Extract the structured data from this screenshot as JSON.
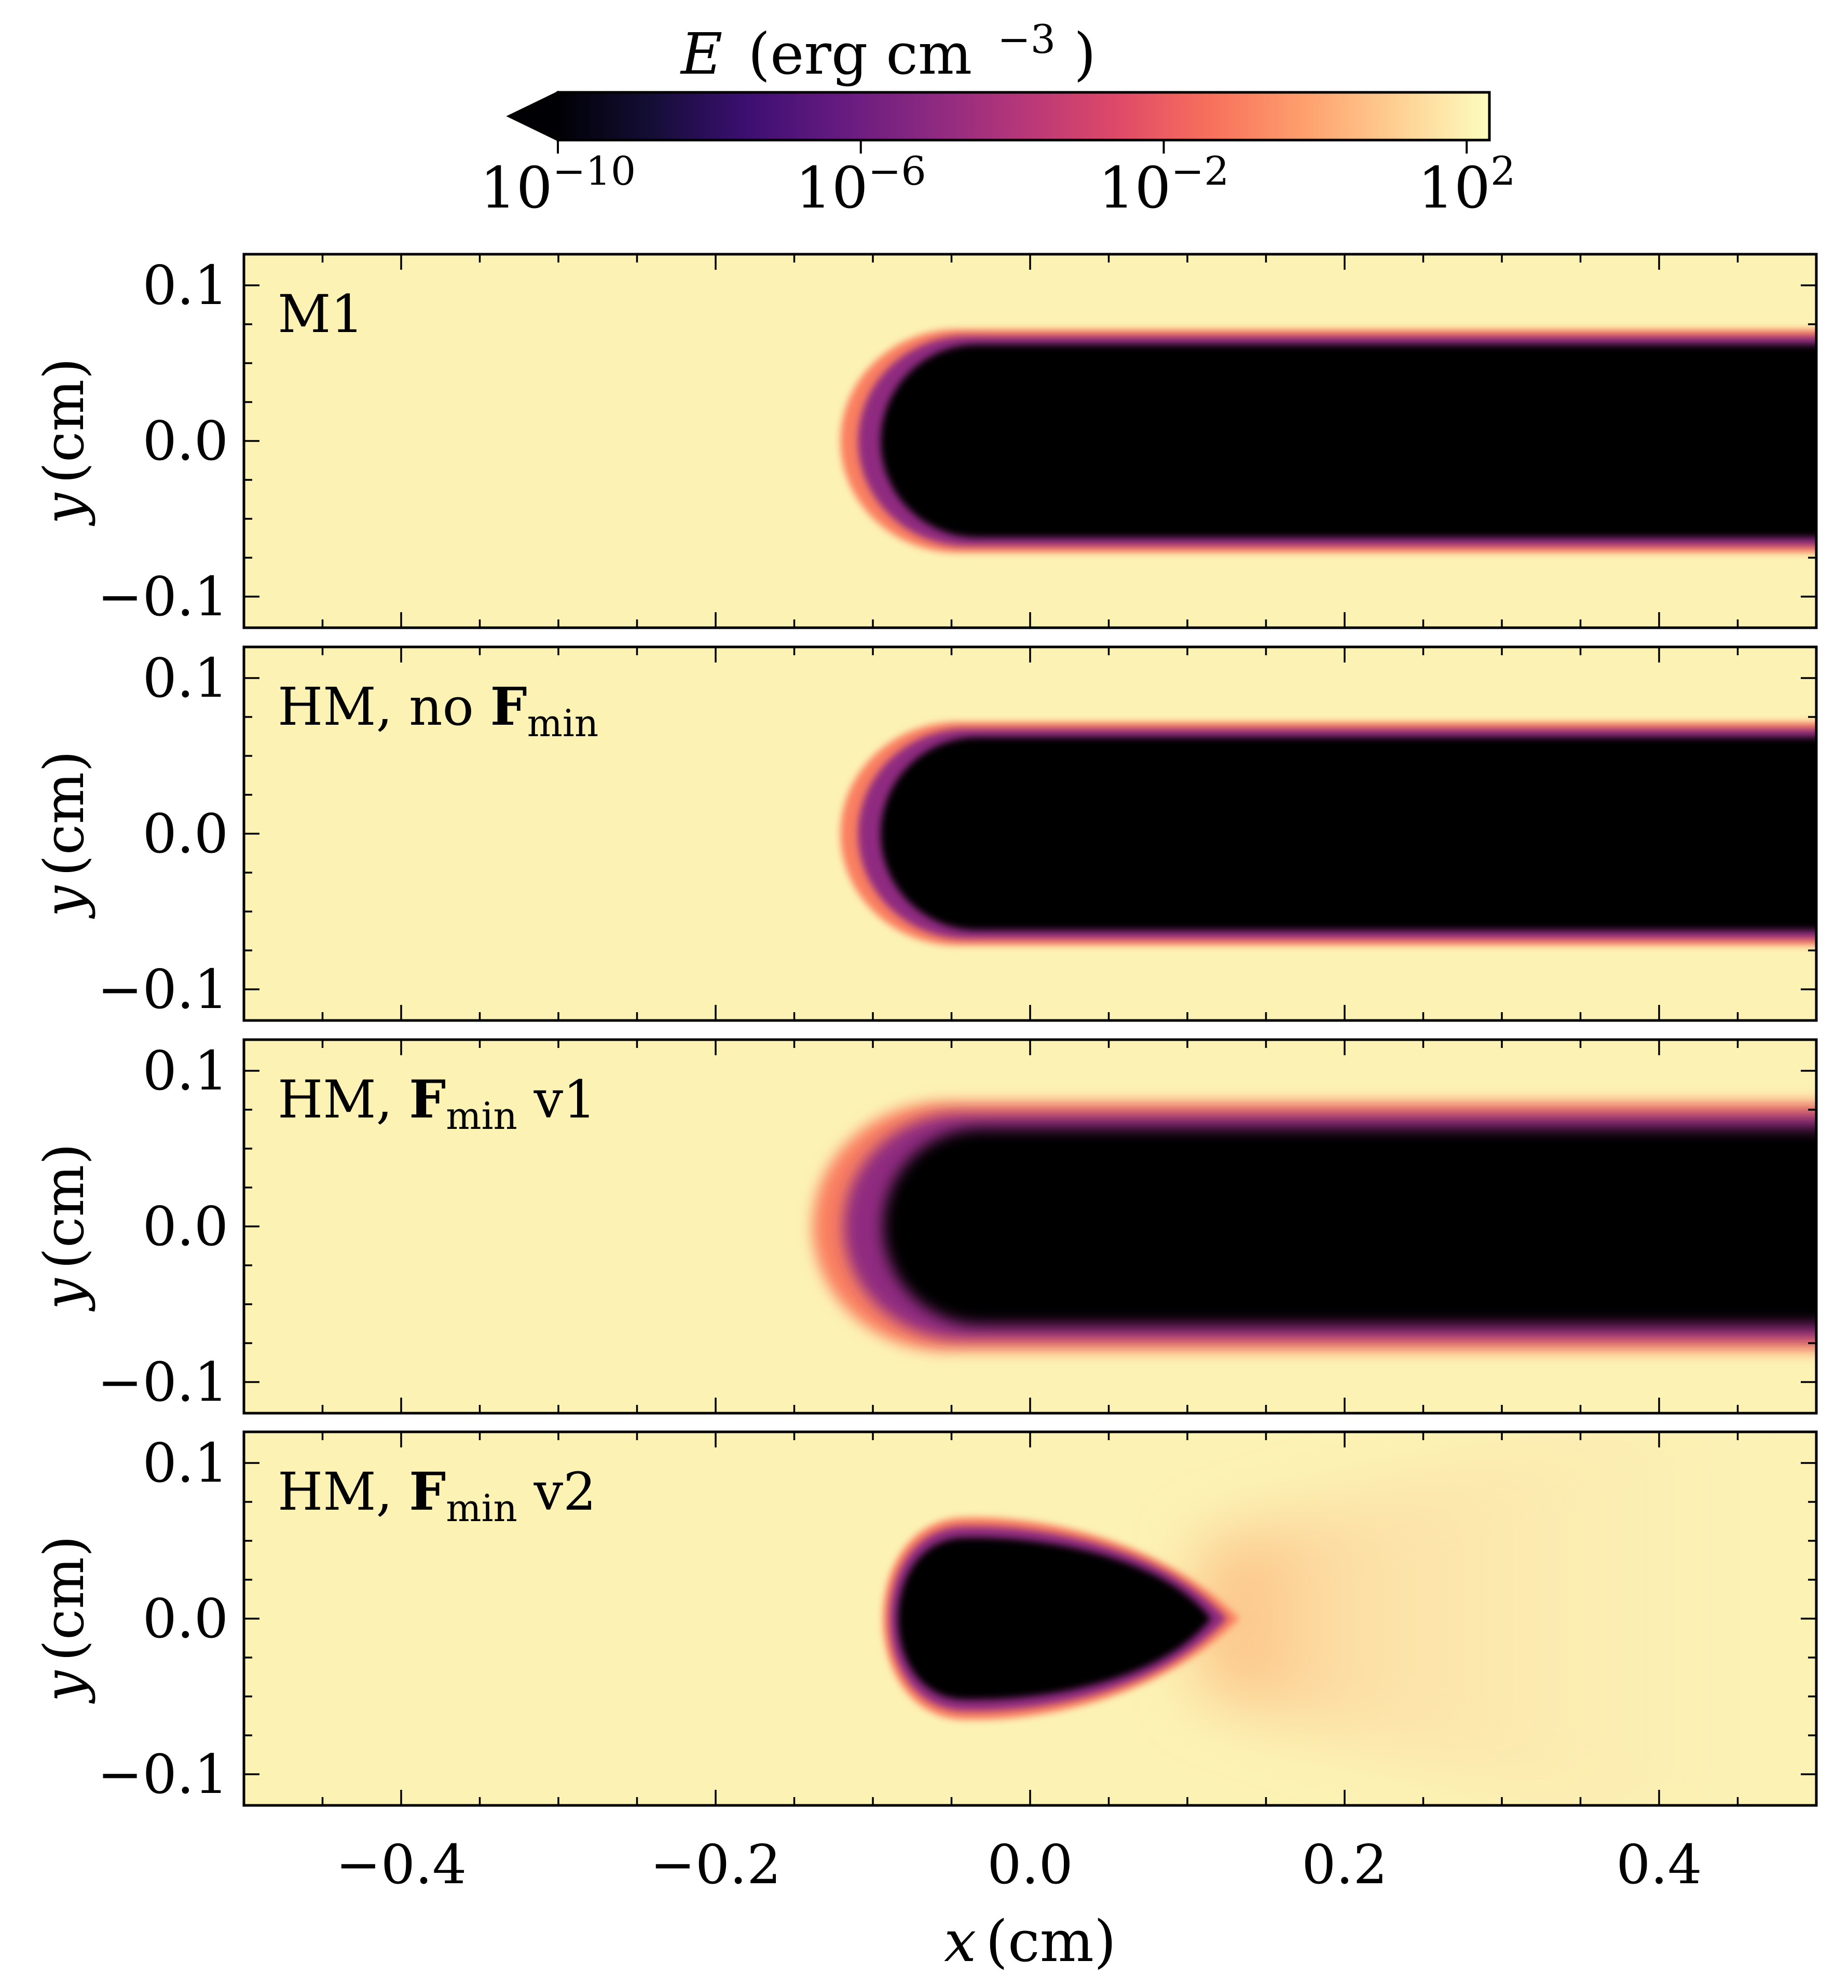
{
  "colorbar": {
    "label_var": "E",
    "label_unit_open": "(erg cm",
    "label_exp": "−3",
    "label_close": ")",
    "scale": "log",
    "range_exp": [
      -10,
      2.3
    ],
    "extend": "min",
    "colormap": "magma",
    "ticks": [
      {
        "base": "10",
        "exp": "−10",
        "value": -10
      },
      {
        "base": "10",
        "exp": "−6",
        "value": -6
      },
      {
        "base": "10",
        "exp": "−2",
        "value": -2
      },
      {
        "base": "10",
        "exp": "2",
        "value": 2
      }
    ]
  },
  "chart_data": {
    "type": "heatmap",
    "quantity": "E (erg cm^-3)",
    "xlabel": "x (cm)",
    "ylabel": "y (cm)",
    "xlim": [
      -0.5,
      0.5
    ],
    "ylim": [
      -0.12,
      0.12
    ],
    "x_ticks": [
      {
        "value": -0.4,
        "label": "−0.4"
      },
      {
        "value": -0.2,
        "label": "−0.2"
      },
      {
        "value": 0.0,
        "label": "0.0"
      },
      {
        "value": 0.2,
        "label": "0.2"
      },
      {
        "value": 0.4,
        "label": "0.4"
      }
    ],
    "y_ticks": [
      {
        "value": 0.1,
        "label": "0.1"
      },
      {
        "value": 0.0,
        "label": "0.0"
      },
      {
        "value": -0.1,
        "label": "−0.1"
      }
    ],
    "background_log10_E": 2,
    "shadow_log10_E": -10,
    "panels": [
      {
        "label_pre": "M1",
        "label_bold": "",
        "label_sub": "",
        "label_post": "",
        "shadow": {
          "shape": "cylinder",
          "x_start": -0.095,
          "x_end": 0.5,
          "half_width": 0.062,
          "edge": 0.008
        }
      },
      {
        "label_pre": "HM, no ",
        "label_bold": "F",
        "label_sub": "min",
        "label_post": "",
        "shadow": {
          "shape": "cylinder",
          "x_start": -0.095,
          "x_end": 0.5,
          "half_width": 0.062,
          "edge": 0.008
        }
      },
      {
        "label_pre": "HM, ",
        "label_bold": "F",
        "label_sub": "min",
        "label_post": " v1",
        "shadow": {
          "shape": "cylinder",
          "x_start": -0.1,
          "x_end": 0.5,
          "half_width": 0.063,
          "edge": 0.014
        }
      },
      {
        "label_pre": "HM, ",
        "label_bold": "F",
        "label_sub": "min",
        "label_post": " v2",
        "shadow": {
          "shape": "drop",
          "x_start": -0.095,
          "x_tip": 0.115,
          "half_width": 0.052,
          "edge": 0.008,
          "tail_end": 0.48
        }
      }
    ]
  }
}
